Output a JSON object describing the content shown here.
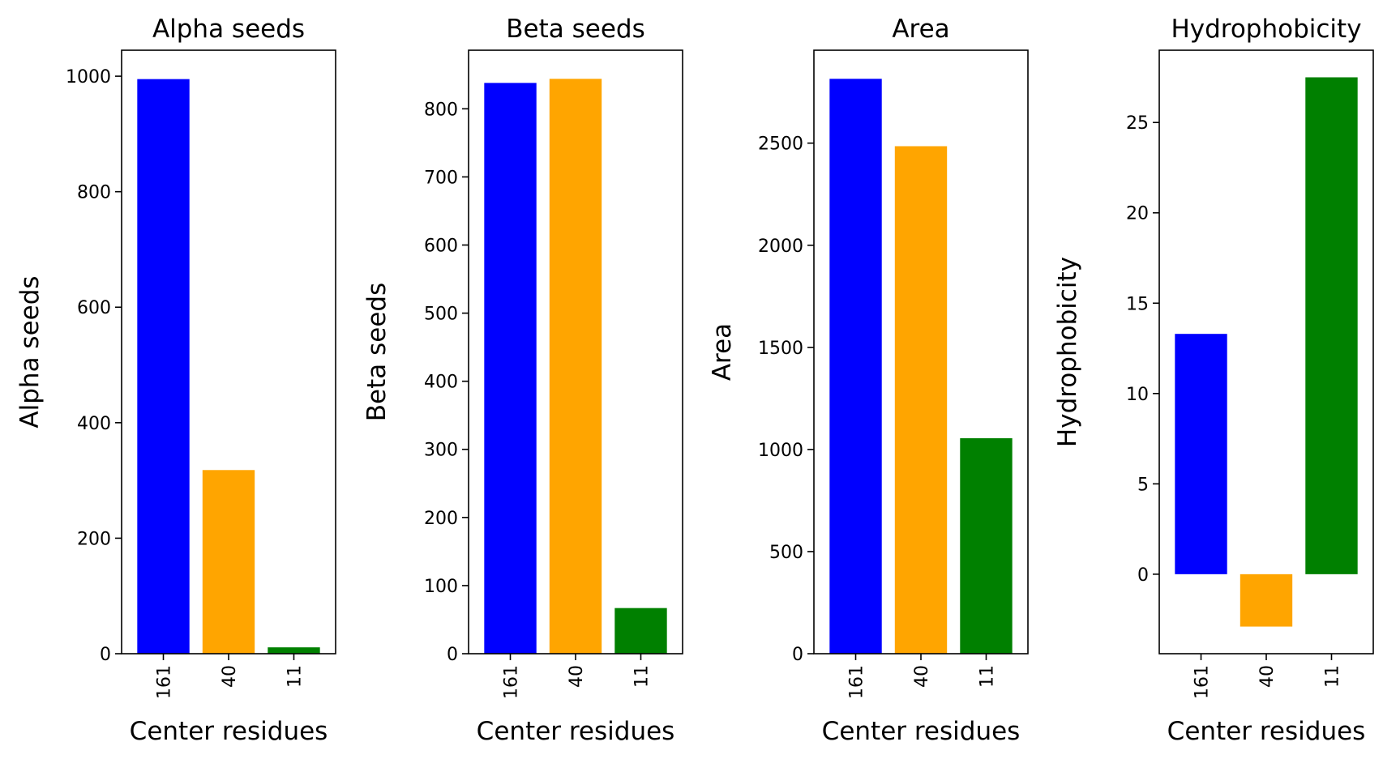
{
  "chart_data": [
    {
      "type": "bar",
      "title": "Alpha seeds",
      "xlabel": "Center residues",
      "ylabel": "Alpha seeds",
      "categories": [
        "161",
        "40",
        "11"
      ],
      "values": [
        995,
        318,
        11
      ],
      "colors": [
        "#0000ff",
        "#ffa500",
        "#008000"
      ],
      "ylim": [
        0,
        1045
      ],
      "yticks": [
        0,
        200,
        400,
        600,
        800,
        1000
      ],
      "grid": false
    },
    {
      "type": "bar",
      "title": "Beta seeds",
      "xlabel": "Center residues",
      "ylabel": "Beta seeds",
      "categories": [
        "161",
        "40",
        "11"
      ],
      "values": [
        838,
        844,
        67
      ],
      "colors": [
        "#0000ff",
        "#ffa500",
        "#008000"
      ],
      "ylim": [
        0,
        886
      ],
      "yticks": [
        0,
        100,
        200,
        300,
        400,
        500,
        600,
        700,
        800
      ],
      "grid": false
    },
    {
      "type": "bar",
      "title": "Area",
      "xlabel": "Center residues",
      "ylabel": "Area",
      "categories": [
        "161",
        "40",
        "11"
      ],
      "values": [
        2815,
        2485,
        1055
      ],
      "colors": [
        "#0000ff",
        "#ffa500",
        "#008000"
      ],
      "ylim": [
        0,
        2955
      ],
      "yticks": [
        0,
        500,
        1000,
        1500,
        2000,
        2500
      ],
      "grid": false
    },
    {
      "type": "bar",
      "title": "Hydrophobicity",
      "xlabel": "Center residues",
      "ylabel": "Hydrophobicity",
      "categories": [
        "161",
        "40",
        "11"
      ],
      "values": [
        13.3,
        -2.9,
        27.5
      ],
      "colors": [
        "#0000ff",
        "#ffa500",
        "#008000"
      ],
      "ylim": [
        -4.4,
        29.0
      ],
      "yticks": [
        0,
        5,
        10,
        15,
        20,
        25
      ],
      "grid": false
    }
  ]
}
